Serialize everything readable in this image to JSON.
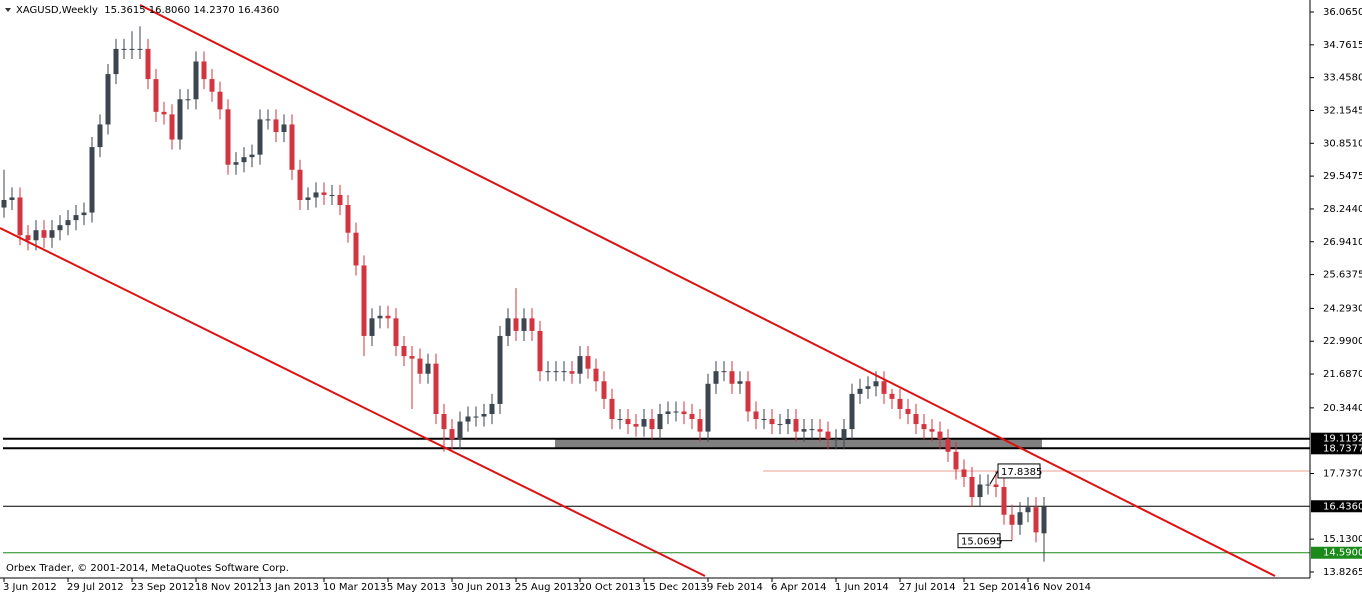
{
  "chart_data": {
    "type": "candlestick",
    "title": "XAGUSD,Weekly  15.3615 16.8060 14.2370 16.4360",
    "watermark": "Orbex Trader, © 2001-2014, MetaQuotes Software Corp.",
    "up_color": "#3c4650",
    "down_color": "#d2353f",
    "categories": [
      "3 Jun 2012",
      null,
      null,
      null,
      null,
      null,
      null,
      null,
      "29 Jul 2012",
      null,
      null,
      null,
      null,
      null,
      null,
      null,
      "23 Sep 2012",
      null,
      null,
      null,
      null,
      null,
      null,
      null,
      "18 Nov 2012",
      null,
      null,
      null,
      null,
      null,
      null,
      null,
      "13 Jan 2013",
      null,
      null,
      null,
      null,
      null,
      null,
      null,
      "10 Mar 2013",
      null,
      null,
      null,
      null,
      null,
      null,
      null,
      "5 May 2013",
      null,
      null,
      null,
      null,
      null,
      null,
      null,
      "30 Jun 2013",
      null,
      null,
      null,
      null,
      null,
      null,
      null,
      "25 Aug 2013",
      null,
      null,
      null,
      null,
      null,
      null,
      null,
      "20 Oct 2013",
      null,
      null,
      null,
      null,
      null,
      null,
      null,
      "15 Dec 2013",
      null,
      null,
      null,
      null,
      null,
      null,
      null,
      "9 Feb 2014",
      null,
      null,
      null,
      null,
      null,
      null,
      null,
      "6 Apr 2014",
      null,
      null,
      null,
      null,
      null,
      null,
      null,
      "1 Jun 2014",
      null,
      null,
      null,
      null,
      null,
      null,
      null,
      "27 Jul 2014",
      null,
      null,
      null,
      null,
      null,
      null,
      null,
      "21 Sep 2014",
      null,
      null,
      null,
      null,
      null,
      null,
      null,
      "16 Nov 2014",
      null,
      null
    ],
    "open": [
      28.3,
      28.6,
      28.7,
      27.2,
      27.0,
      27.4,
      27.1,
      27.4,
      27.6,
      27.8,
      28.0,
      28.1,
      30.7,
      31.6,
      33.6,
      34.6,
      34.6,
      34.6,
      34.6,
      33.4,
      32.1,
      32.0,
      31.0,
      32.6,
      32.6,
      34.1,
      33.4,
      32.9,
      32.2,
      30.0,
      30.1,
      30.3,
      30.4,
      31.8,
      31.8,
      31.3,
      31.6,
      29.8,
      28.6,
      28.7,
      28.9,
      28.8,
      28.8,
      28.4,
      27.3,
      26.0,
      23.2,
      23.9,
      24.0,
      23.9,
      22.8,
      22.4,
      22.3,
      21.7,
      22.1,
      20.1,
      19.5,
      19.1,
      19.8,
      20.0,
      20.0,
      20.1,
      20.5,
      23.2,
      23.9,
      23.4,
      23.9,
      23.4,
      21.8,
      21.8,
      21.8,
      21.8,
      21.7,
      22.4,
      21.9,
      21.4,
      20.7,
      19.9,
      19.9,
      19.7,
      19.6,
      19.9,
      19.5,
      20.1,
      20.2,
      20.2,
      20.1,
      19.9,
      19.4,
      21.3,
      21.8,
      21.8,
      21.3,
      21.4,
      20.2,
      19.9,
      19.9,
      19.7,
      19.7,
      19.9,
      19.4,
      19.5,
      19.5,
      19.4,
      19.1,
      19.1,
      19.5,
      20.9,
      21.1,
      21.2,
      21.4,
      20.9,
      20.7,
      20.3,
      20.1,
      19.7,
      19.5,
      19.4,
      19.1,
      18.6,
      17.9,
      17.6,
      16.8,
      17.3,
      17.3,
      17.2,
      16.1,
      15.7,
      16.2,
      16.4,
      15.3615
    ],
    "high": [
      29.8,
      29.1,
      29.1,
      27.6,
      27.8,
      27.8,
      27.8,
      28.0,
      28.2,
      28.4,
      28.5,
      31.1,
      32.0,
      34.0,
      35.0,
      35.0,
      35.3,
      35.5,
      35.0,
      33.8,
      32.5,
      32.4,
      33.0,
      33.0,
      34.5,
      34.5,
      33.8,
      33.3,
      32.6,
      30.5,
      30.7,
      30.8,
      32.2,
      32.2,
      32.2,
      32.0,
      32.0,
      30.2,
      29.1,
      29.3,
      29.3,
      29.2,
      29.2,
      28.8,
      27.7,
      26.4,
      24.3,
      24.4,
      24.4,
      24.3,
      23.2,
      22.8,
      22.7,
      22.5,
      22.5,
      20.5,
      19.9,
      20.2,
      20.4,
      20.4,
      20.5,
      20.9,
      23.6,
      24.3,
      25.1,
      24.3,
      24.3,
      23.8,
      22.2,
      22.2,
      22.2,
      22.2,
      22.8,
      22.8,
      22.3,
      21.8,
      21.1,
      20.3,
      20.3,
      20.1,
      20.3,
      20.3,
      20.5,
      20.6,
      20.6,
      20.6,
      20.5,
      20.3,
      21.7,
      22.2,
      22.2,
      22.2,
      21.8,
      21.8,
      20.6,
      20.3,
      20.3,
      20.1,
      20.3,
      20.3,
      19.9,
      19.9,
      19.9,
      19.8,
      19.5,
      19.9,
      21.3,
      21.5,
      21.6,
      21.8,
      21.8,
      21.1,
      21.1,
      20.7,
      20.5,
      20.1,
      19.9,
      19.8,
      19.5,
      19.0,
      18.3,
      18.0,
      17.7,
      17.7,
      17.84,
      17.6,
      16.5,
      16.6,
      16.8,
      16.8,
      16.806
    ],
    "low": [
      27.9,
      28.2,
      26.8,
      26.6,
      26.6,
      26.7,
      26.7,
      27.0,
      27.2,
      27.4,
      27.6,
      27.7,
      30.3,
      31.2,
      33.2,
      34.2,
      34.2,
      34.2,
      33.0,
      31.7,
      31.6,
      30.6,
      30.6,
      32.2,
      32.2,
      33.0,
      32.5,
      31.8,
      29.6,
      29.6,
      29.7,
      29.9,
      30.0,
      31.4,
      30.9,
      30.9,
      29.4,
      28.2,
      28.2,
      28.3,
      28.4,
      28.4,
      28.0,
      26.9,
      25.6,
      22.4,
      22.8,
      23.5,
      23.5,
      22.4,
      22.0,
      20.3,
      21.3,
      21.3,
      19.7,
      18.6,
      18.7,
      18.7,
      19.4,
      19.6,
      19.6,
      19.7,
      20.1,
      22.8,
      23.0,
      23.0,
      23.0,
      21.4,
      21.4,
      21.4,
      21.4,
      21.3,
      21.3,
      21.5,
      21.0,
      20.3,
      19.5,
      19.5,
      19.3,
      19.2,
      19.2,
      19.1,
      19.1,
      19.7,
      19.8,
      19.7,
      19.5,
      19.0,
      19.0,
      20.9,
      21.4,
      20.9,
      20.9,
      19.8,
      19.5,
      19.5,
      19.3,
      19.3,
      19.3,
      19.0,
      19.0,
      19.1,
      19.0,
      18.7,
      18.7,
      18.7,
      19.1,
      20.5,
      20.7,
      20.8,
      20.5,
      20.3,
      19.9,
      19.7,
      19.3,
      19.1,
      19.0,
      18.7,
      18.2,
      17.5,
      17.2,
      16.4,
      16.4,
      16.9,
      16.8,
      15.7,
      15.07,
      15.3,
      15.8,
      15.0,
      14.237
    ],
    "close": [
      28.6,
      28.7,
      27.2,
      27.0,
      27.4,
      27.1,
      27.4,
      27.6,
      27.8,
      28.0,
      28.1,
      30.7,
      31.6,
      33.6,
      34.6,
      34.6,
      34.6,
      34.6,
      33.4,
      32.1,
      32.0,
      31.0,
      32.6,
      32.6,
      34.1,
      33.4,
      32.9,
      32.2,
      30.0,
      30.1,
      30.3,
      30.4,
      31.8,
      31.8,
      31.3,
      31.6,
      29.8,
      28.6,
      28.7,
      28.9,
      28.8,
      28.8,
      28.4,
      27.3,
      26.0,
      23.2,
      23.9,
      24.0,
      23.9,
      22.8,
      22.4,
      22.3,
      21.7,
      22.1,
      20.1,
      19.5,
      19.1,
      19.8,
      20.0,
      20.0,
      20.1,
      20.5,
      23.2,
      23.9,
      23.4,
      23.9,
      23.4,
      21.8,
      21.8,
      21.8,
      21.8,
      21.7,
      22.4,
      21.9,
      21.4,
      20.7,
      19.9,
      19.9,
      19.7,
      19.6,
      19.9,
      19.5,
      20.1,
      20.2,
      20.2,
      20.1,
      19.9,
      19.4,
      21.3,
      21.8,
      21.8,
      21.3,
      21.4,
      20.2,
      19.9,
      19.9,
      19.7,
      19.7,
      19.9,
      19.4,
      19.5,
      19.5,
      19.4,
      19.1,
      19.1,
      19.5,
      20.9,
      21.1,
      21.2,
      21.4,
      20.9,
      20.7,
      20.3,
      20.1,
      19.7,
      19.5,
      19.4,
      19.1,
      18.6,
      17.9,
      17.6,
      16.8,
      17.3,
      17.3,
      17.2,
      16.1,
      15.7,
      16.2,
      16.4,
      15.4,
      16.436
    ],
    "ylim": [
      13.587,
      36.542
    ],
    "yticks": [
      {
        "value": 36.065,
        "label": "36.0650"
      },
      34.7615,
      {
        "value": 33.458,
        "label": "33.4580"
      },
      32.1545,
      {
        "value": 30.851,
        "label": "30.8510"
      },
      29.5475,
      {
        "value": 28.244,
        "label": "28.2440"
      },
      {
        "value": 26.941,
        "label": "26.9410"
      },
      25.6375,
      {
        "value": 24.293,
        "label": "24.2930"
      },
      {
        "value": 22.99,
        "label": "22.9900"
      },
      {
        "value": 21.687,
        "label": "21.6870"
      },
      {
        "value": 20.344,
        "label": "20.3440"
      },
      {
        "value": 17.737,
        "label": "17.7370"
      },
      {
        "value": 15.13,
        "label": "15.1300"
      },
      13.8265
    ],
    "levels": [
      {
        "value": 19.1192,
        "color": "#000000"
      },
      {
        "value": 18.7377,
        "color": "#000000"
      },
      {
        "value": {
          "value": 16.436,
          "label": "16.4360"
        },
        "color": "#000000"
      },
      {
        "value": {
          "value": 14.59,
          "label": "14.5900"
        },
        "color": "#1a8a1a"
      }
    ],
    "annotations": [
      17.8385,
      15.0695
    ]
  }
}
